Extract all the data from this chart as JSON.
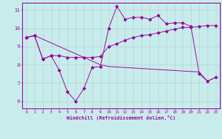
{
  "title": "",
  "xlabel": "Windchill (Refroidissement éolien,°C)",
  "bg_color": "#c8ecec",
  "line_color": "#990099",
  "grid_color": "#aacccc",
  "xlim": [
    -0.5,
    23.5
  ],
  "ylim": [
    5.6,
    11.4
  ],
  "xticks": [
    0,
    1,
    2,
    3,
    4,
    5,
    6,
    7,
    8,
    9,
    10,
    11,
    12,
    13,
    14,
    15,
    16,
    17,
    18,
    19,
    20,
    21,
    22,
    23
  ],
  "yticks": [
    6,
    7,
    8,
    9,
    10,
    11
  ],
  "line1_x": [
    0,
    1,
    2,
    3,
    4,
    5,
    6,
    7,
    8,
    9,
    10,
    11,
    12,
    13,
    14,
    15,
    16,
    17,
    18,
    19,
    20,
    21,
    22,
    23
  ],
  "line1_y": [
    9.5,
    9.6,
    8.3,
    8.5,
    7.7,
    6.5,
    6.0,
    6.7,
    7.85,
    7.9,
    10.0,
    11.2,
    10.5,
    10.6,
    10.6,
    10.5,
    10.7,
    10.25,
    10.3,
    10.3,
    10.1,
    7.5,
    7.1,
    7.3
  ],
  "line2_x": [
    0,
    1,
    2,
    3,
    4,
    5,
    6,
    7,
    8,
    9,
    10,
    11,
    12,
    13,
    14,
    15,
    16,
    17,
    18,
    19,
    20,
    21,
    22,
    23
  ],
  "line2_y": [
    9.5,
    9.6,
    8.3,
    8.5,
    8.5,
    8.4,
    8.4,
    8.4,
    8.4,
    8.45,
    9.0,
    9.15,
    9.35,
    9.5,
    9.6,
    9.65,
    9.75,
    9.85,
    9.95,
    10.05,
    10.05,
    10.1,
    10.15,
    10.15
  ],
  "line3_x": [
    0,
    1,
    9,
    10,
    21,
    22,
    23
  ],
  "line3_y": [
    9.5,
    9.6,
    8.0,
    7.9,
    7.6,
    7.1,
    7.3
  ],
  "markersize": 2.5
}
